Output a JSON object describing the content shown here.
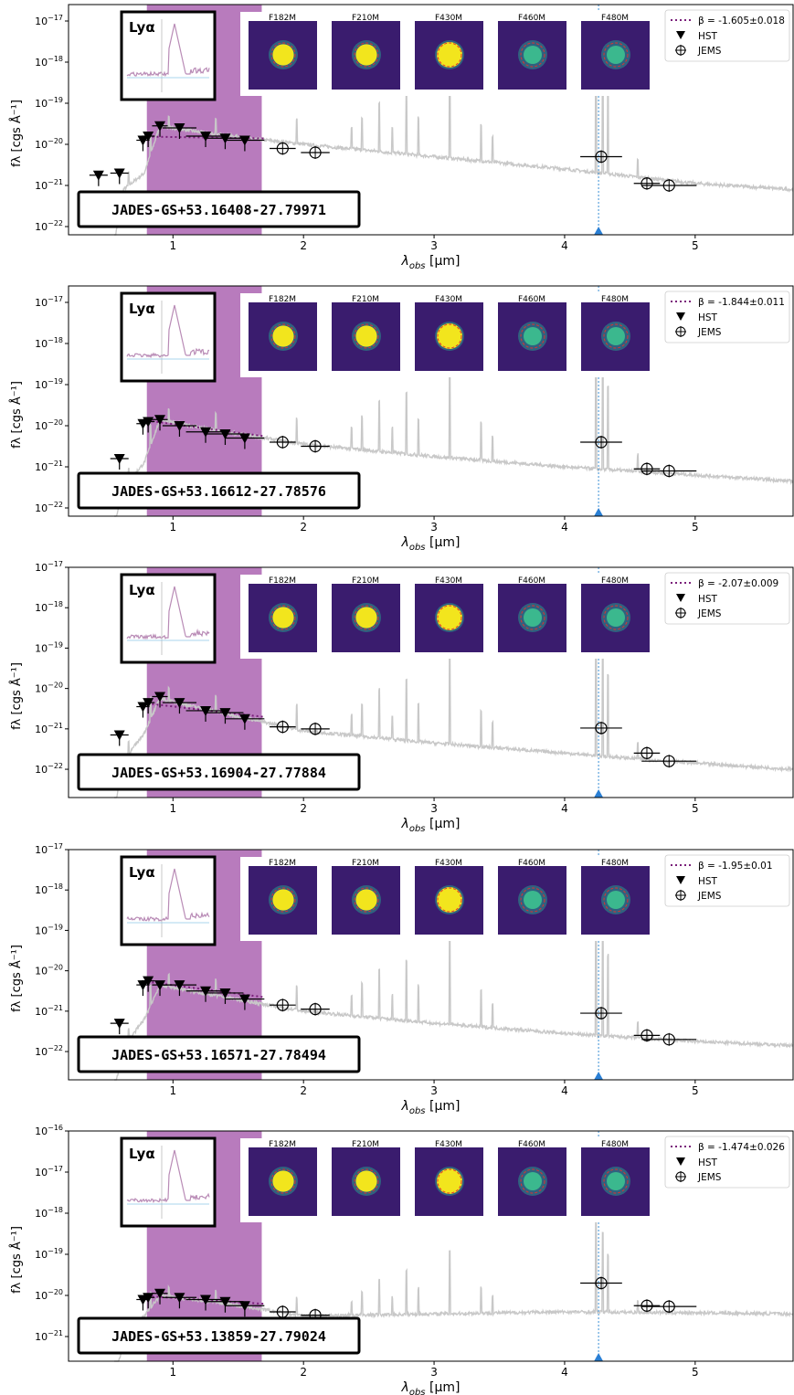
{
  "figure": {
    "xlabel": "λobs [μm]",
    "ylabel": "fλ [cgs Å⁻¹]",
    "inset_label": "Lyα",
    "bands": [
      "F182M",
      "F210M",
      "F430M",
      "F460M",
      "F480M"
    ],
    "legend_hst": "HST",
    "legend_jems": "JEMS"
  },
  "chart_data": [
    {
      "type": "scatter",
      "object": "JADES-GS+53.16408-27.79971",
      "beta_label": "β = -1.605±0.018",
      "xlim": [
        0.2,
        5.75
      ],
      "ylim": [
        -22.2,
        -16.6
      ],
      "yscale": "log",
      "xticks": [
        1,
        2,
        3,
        4,
        5
      ],
      "yticks": [
        -22,
        -21,
        -20,
        -19,
        -18,
        -17
      ],
      "shaded_region_um": [
        0.8,
        1.68
      ],
      "line_marker_um": 4.26,
      "hst": [
        {
          "x": 0.43,
          "y": -20.75,
          "xerr": 0.07
        },
        {
          "x": 0.59,
          "y": -20.7,
          "xerr": 0.07
        },
        {
          "x": 0.77,
          "y": -19.9,
          "xerr": 0.05
        },
        {
          "x": 0.81,
          "y": -19.8,
          "xerr": 0.05
        },
        {
          "x": 0.9,
          "y": -19.55,
          "xerr": 0.06
        },
        {
          "x": 1.05,
          "y": -19.6,
          "xerr": 0.13
        },
        {
          "x": 1.25,
          "y": -19.8,
          "xerr": 0.15
        },
        {
          "x": 1.4,
          "y": -19.85,
          "xerr": 0.14
        },
        {
          "x": 1.55,
          "y": -19.9,
          "xerr": 0.15
        }
      ],
      "jems": [
        {
          "x": 1.84,
          "y": -20.1,
          "xerr": 0.1
        },
        {
          "x": 2.09,
          "y": -20.2,
          "xerr": 0.11
        },
        {
          "x": 4.28,
          "y": -20.3,
          "xerr": 0.16
        },
        {
          "x": 4.63,
          "y": -20.95,
          "xerr": 0.1
        },
        {
          "x": 4.8,
          "y": -21.0,
          "xerr": 0.21
        }
      ],
      "sed_anchor": [
        [
          0.55,
          -22.4
        ],
        [
          0.62,
          -21.1
        ],
        [
          0.78,
          -20.7
        ],
        [
          0.9,
          -19.55
        ],
        [
          1.3,
          -19.75
        ],
        [
          2.0,
          -20.0
        ],
        [
          3.0,
          -20.3
        ],
        [
          4.0,
          -20.6
        ],
        [
          5.0,
          -20.95
        ],
        [
          5.75,
          -21.1
        ]
      ]
    },
    {
      "type": "scatter",
      "object": "JADES-GS+53.16612-27.78576",
      "beta_label": "β = -1.844±0.011",
      "xlim": [
        0.2,
        5.75
      ],
      "ylim": [
        -22.2,
        -16.6
      ],
      "yscale": "log",
      "xticks": [
        1,
        2,
        3,
        4,
        5
      ],
      "yticks": [
        -22,
        -21,
        -20,
        -19,
        -18,
        -17
      ],
      "shaded_region_um": [
        0.8,
        1.68
      ],
      "line_marker_um": 4.26,
      "hst": [
        {
          "x": 0.59,
          "y": -20.8,
          "xerr": 0.07
        },
        {
          "x": 0.77,
          "y": -19.95,
          "xerr": 0.05
        },
        {
          "x": 0.81,
          "y": -19.9,
          "xerr": 0.05
        },
        {
          "x": 0.9,
          "y": -19.85,
          "xerr": 0.06
        },
        {
          "x": 1.05,
          "y": -20.0,
          "xerr": 0.13
        },
        {
          "x": 1.25,
          "y": -20.15,
          "xerr": 0.15
        },
        {
          "x": 1.4,
          "y": -20.2,
          "xerr": 0.14
        },
        {
          "x": 1.55,
          "y": -20.3,
          "xerr": 0.15
        }
      ],
      "jems": [
        {
          "x": 1.84,
          "y": -20.4,
          "xerr": 0.1
        },
        {
          "x": 2.09,
          "y": -20.5,
          "xerr": 0.11
        },
        {
          "x": 4.28,
          "y": -20.4,
          "xerr": 0.16
        },
        {
          "x": 4.63,
          "y": -21.05,
          "xerr": 0.1
        },
        {
          "x": 4.8,
          "y": -21.1,
          "xerr": 0.21
        }
      ],
      "sed_anchor": [
        [
          0.55,
          -22.4
        ],
        [
          0.62,
          -21.5
        ],
        [
          0.78,
          -20.9
        ],
        [
          0.9,
          -19.85
        ],
        [
          1.3,
          -20.1
        ],
        [
          2.0,
          -20.45
        ],
        [
          3.0,
          -20.75
        ],
        [
          4.0,
          -21.0
        ],
        [
          5.0,
          -21.2
        ],
        [
          5.75,
          -21.35
        ]
      ]
    },
    {
      "type": "scatter",
      "object": "JADES-GS+53.16904-27.77884",
      "beta_label": "β = -2.07±0.009",
      "xlim": [
        0.2,
        5.75
      ],
      "ylim": [
        -22.7,
        -17.0
      ],
      "yscale": "log",
      "xticks": [
        1,
        2,
        3,
        4,
        5
      ],
      "yticks": [
        -22,
        -21,
        -20,
        -19,
        -18,
        -17
      ],
      "shaded_region_um": [
        0.8,
        1.68
      ],
      "line_marker_um": 4.26,
      "hst": [
        {
          "x": 0.59,
          "y": -21.15,
          "xerr": 0.07
        },
        {
          "x": 0.77,
          "y": -20.45,
          "xerr": 0.05
        },
        {
          "x": 0.81,
          "y": -20.35,
          "xerr": 0.05
        },
        {
          "x": 0.9,
          "y": -20.2,
          "xerr": 0.06
        },
        {
          "x": 1.05,
          "y": -20.35,
          "xerr": 0.13
        },
        {
          "x": 1.25,
          "y": -20.55,
          "xerr": 0.15
        },
        {
          "x": 1.4,
          "y": -20.6,
          "xerr": 0.14
        },
        {
          "x": 1.55,
          "y": -20.75,
          "xerr": 0.15
        }
      ],
      "jems": [
        {
          "x": 1.84,
          "y": -20.95,
          "xerr": 0.1
        },
        {
          "x": 2.09,
          "y": -21.0,
          "xerr": 0.11
        },
        {
          "x": 4.28,
          "y": -20.98,
          "xerr": 0.16
        },
        {
          "x": 4.63,
          "y": -21.6,
          "xerr": 0.1
        },
        {
          "x": 4.8,
          "y": -21.8,
          "xerr": 0.21
        }
      ],
      "sed_anchor": [
        [
          0.55,
          -23.0
        ],
        [
          0.62,
          -21.8
        ],
        [
          0.78,
          -21.1
        ],
        [
          0.9,
          -20.25
        ],
        [
          1.3,
          -20.55
        ],
        [
          2.0,
          -21.05
        ],
        [
          3.0,
          -21.35
        ],
        [
          4.0,
          -21.6
        ],
        [
          5.0,
          -21.85
        ],
        [
          5.75,
          -22.0
        ]
      ]
    },
    {
      "type": "scatter",
      "object": "JADES-GS+53.16571-27.78494",
      "beta_label": "β = -1.95±0.01",
      "xlim": [
        0.2,
        5.75
      ],
      "ylim": [
        -22.7,
        -17.0
      ],
      "yscale": "log",
      "xticks": [
        1,
        2,
        3,
        4,
        5
      ],
      "yticks": [
        -22,
        -21,
        -20,
        -19,
        -18,
        -17
      ],
      "shaded_region_um": [
        0.8,
        1.68
      ],
      "line_marker_um": 4.26,
      "hst": [
        {
          "x": 0.59,
          "y": -21.3,
          "xerr": 0.07
        },
        {
          "x": 0.77,
          "y": -20.35,
          "xerr": 0.05
        },
        {
          "x": 0.81,
          "y": -20.25,
          "xerr": 0.05
        },
        {
          "x": 0.9,
          "y": -20.35,
          "xerr": 0.06
        },
        {
          "x": 1.05,
          "y": -20.35,
          "xerr": 0.13
        },
        {
          "x": 1.25,
          "y": -20.5,
          "xerr": 0.15
        },
        {
          "x": 1.4,
          "y": -20.55,
          "xerr": 0.14
        },
        {
          "x": 1.55,
          "y": -20.7,
          "xerr": 0.15
        }
      ],
      "jems": [
        {
          "x": 1.84,
          "y": -20.85,
          "xerr": 0.1
        },
        {
          "x": 2.09,
          "y": -20.95,
          "xerr": 0.11
        },
        {
          "x": 4.28,
          "y": -21.05,
          "xerr": 0.16
        },
        {
          "x": 4.63,
          "y": -21.6,
          "xerr": 0.1
        },
        {
          "x": 4.8,
          "y": -21.7,
          "xerr": 0.21
        }
      ],
      "sed_anchor": [
        [
          0.55,
          -23.0
        ],
        [
          0.62,
          -21.9
        ],
        [
          0.78,
          -21.2
        ],
        [
          0.9,
          -20.35
        ],
        [
          1.3,
          -20.6
        ],
        [
          2.0,
          -21.0
        ],
        [
          3.0,
          -21.3
        ],
        [
          4.0,
          -21.55
        ],
        [
          5.0,
          -21.75
        ],
        [
          5.75,
          -21.85
        ]
      ]
    },
    {
      "type": "scatter",
      "object": "JADES-GS+53.13859-27.79024",
      "beta_label": "β = -1.474±0.026",
      "xlim": [
        0.2,
        5.75
      ],
      "ylim": [
        -21.6,
        -16.0
      ],
      "yscale": "log",
      "xticks": [
        1,
        2,
        3,
        4,
        5
      ],
      "yticks": [
        -21,
        -20,
        -19,
        -18,
        -17,
        -16
      ],
      "shaded_region_um": [
        0.8,
        1.68
      ],
      "line_marker_um": 4.26,
      "hst": [
        {
          "x": 0.77,
          "y": -20.1,
          "xerr": 0.05
        },
        {
          "x": 0.81,
          "y": -20.05,
          "xerr": 0.05
        },
        {
          "x": 0.9,
          "y": -19.95,
          "xerr": 0.06
        },
        {
          "x": 1.05,
          "y": -20.05,
          "xerr": 0.13
        },
        {
          "x": 1.25,
          "y": -20.1,
          "xerr": 0.15
        },
        {
          "x": 1.4,
          "y": -20.15,
          "xerr": 0.14
        },
        {
          "x": 1.55,
          "y": -20.25,
          "xerr": 0.15
        }
      ],
      "jems": [
        {
          "x": 1.84,
          "y": -20.4,
          "xerr": 0.1
        },
        {
          "x": 2.09,
          "y": -20.48,
          "xerr": 0.11
        },
        {
          "x": 4.28,
          "y": -19.7,
          "xerr": 0.16
        },
        {
          "x": 4.63,
          "y": -20.25,
          "xerr": 0.1
        },
        {
          "x": 4.8,
          "y": -20.27,
          "xerr": 0.21
        }
      ],
      "sed_anchor": [
        [
          0.55,
          -22.0
        ],
        [
          0.62,
          -21.2
        ],
        [
          0.78,
          -20.5
        ],
        [
          0.9,
          -20.0
        ],
        [
          1.3,
          -20.15
        ],
        [
          2.0,
          -20.5
        ],
        [
          3.0,
          -20.45
        ],
        [
          4.0,
          -20.4
        ],
        [
          5.0,
          -20.42
        ],
        [
          5.75,
          -20.45
        ]
      ]
    }
  ]
}
